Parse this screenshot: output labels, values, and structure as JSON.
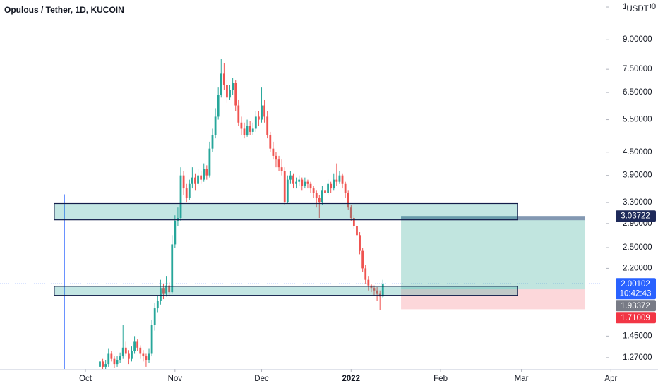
{
  "chart_data": {
    "type": "candlestick",
    "title": "Opulous / Tether, 1D, KUCOIN",
    "y_unit": "USDT",
    "log_y": true,
    "colors": {
      "up": "#26a69a",
      "down": "#ef5350"
    },
    "xlim": [
      -29.6,
      180.2
    ],
    "xticks": [
      {
        "value": 0,
        "label": "Oct"
      },
      {
        "value": 31,
        "label": "Nov"
      },
      {
        "value": 61,
        "label": "Dec"
      },
      {
        "value": 92,
        "label": "2022"
      },
      {
        "value": 123,
        "label": "Feb"
      },
      {
        "value": 151,
        "label": "Mar"
      },
      {
        "value": 182,
        "label": "Apr"
      }
    ],
    "ylim": [
      1.184,
      11.49
    ],
    "yticks": [
      {
        "value": 1.27,
        "label": "1.27000"
      },
      {
        "value": 1.45,
        "label": "1.45000"
      },
      {
        "value": 2.2,
        "label": "2.20000"
      },
      {
        "value": 2.5,
        "label": "2.50000"
      },
      {
        "value": 2.9,
        "label": "2.90000"
      },
      {
        "value": 3.3,
        "label": "3.30000"
      },
      {
        "value": 3.9,
        "label": "3.90000"
      },
      {
        "value": 4.5,
        "label": "4.50000"
      },
      {
        "value": 5.5,
        "label": "5.50000"
      },
      {
        "value": 6.5,
        "label": "6.50000"
      },
      {
        "value": 7.5,
        "label": "7.50000"
      },
      {
        "value": 9,
        "label": "9.00000"
      },
      {
        "value": 11,
        "label": "11.00000"
      }
    ],
    "x": [
      5,
      6,
      7,
      8,
      9,
      10,
      11,
      12,
      13,
      14,
      15,
      16,
      17,
      18,
      19,
      20,
      21,
      22,
      23,
      24,
      25,
      26,
      27,
      28,
      29,
      30,
      31,
      32,
      33,
      34,
      35,
      36,
      37,
      38,
      39,
      40,
      41,
      42,
      43,
      44,
      45,
      46,
      47,
      48,
      49,
      50,
      51,
      52,
      53,
      54,
      55,
      56,
      57,
      58,
      59,
      60,
      61,
      62,
      63,
      64,
      65,
      66,
      67,
      68,
      69,
      70,
      71,
      72,
      73,
      74,
      75,
      76,
      77,
      78,
      79,
      80,
      81,
      82,
      83,
      84,
      85,
      86,
      87,
      88,
      89,
      90,
      91,
      92,
      93,
      94,
      95,
      96,
      97,
      98,
      99,
      100,
      101,
      102,
      103
    ],
    "open": [
      1.2,
      1.24,
      1.2,
      1.22,
      1.3,
      1.26,
      1.22,
      1.25,
      1.28,
      1.35,
      1.3,
      1.26,
      1.32,
      1.4,
      1.35,
      1.3,
      1.28,
      1.25,
      1.3,
      1.55,
      1.72,
      1.8,
      1.95,
      1.88,
      1.98,
      1.9,
      2.55,
      2.95,
      3.0,
      3.9,
      3.6,
      3.4,
      3.7,
      3.85,
      3.7,
      3.9,
      3.8,
      4.05,
      3.9,
      4.6,
      5.0,
      5.6,
      6.4,
      7.3,
      6.8,
      6.3,
      6.6,
      6.9,
      6.0,
      5.4,
      5.2,
      5.0,
      5.3,
      5.1,
      5.2,
      5.6,
      5.5,
      6.0,
      5.6,
      5.0,
      4.6,
      4.4,
      4.3,
      4.1,
      4.0,
      3.3,
      3.8,
      3.9,
      3.7,
      3.75,
      3.8,
      3.65,
      3.75,
      3.7,
      3.6,
      3.5,
      3.4,
      3.3,
      3.55,
      3.5,
      3.7,
      3.6,
      3.8,
      3.75,
      3.9,
      3.7,
      3.5,
      3.2,
      3.0,
      2.85,
      2.7,
      2.45,
      2.2,
      2.05,
      1.98,
      1.95,
      1.92,
      1.88,
      1.85
    ],
    "high": [
      1.27,
      1.26,
      1.25,
      1.34,
      1.32,
      1.28,
      1.28,
      1.31,
      1.55,
      1.4,
      1.33,
      1.36,
      1.45,
      1.42,
      1.37,
      1.33,
      1.3,
      1.34,
      1.6,
      1.78,
      1.86,
      2.05,
      2.0,
      2.1,
      2.02,
      2.7,
      3.05,
      3.2,
      4.1,
      4.0,
      3.7,
      3.8,
      4.1,
      3.95,
      4.05,
      4.0,
      4.2,
      4.15,
      4.8,
      5.2,
      5.9,
      6.7,
      8.0,
      7.8,
      7.0,
      6.8,
      7.1,
      7.0,
      6.2,
      5.6,
      5.4,
      5.5,
      5.45,
      5.4,
      5.8,
      5.8,
      6.7,
      6.2,
      5.8,
      5.1,
      4.8,
      4.5,
      4.4,
      4.3,
      4.1,
      3.9,
      4.0,
      3.95,
      3.85,
      3.9,
      3.85,
      3.85,
      3.8,
      3.75,
      3.65,
      3.55,
      3.45,
      3.65,
      3.6,
      3.8,
      3.75,
      3.95,
      4.2,
      4.0,
      3.95,
      3.75,
      3.55,
      3.25,
      3.05,
      2.9,
      2.75,
      2.5,
      2.25,
      2.1,
      2.0,
      1.98,
      1.96,
      1.92,
      2.05
    ],
    "low": [
      1.18,
      1.17,
      1.18,
      1.2,
      1.24,
      1.19,
      1.2,
      1.23,
      1.26,
      1.28,
      1.22,
      1.24,
      1.3,
      1.32,
      1.26,
      1.24,
      1.2,
      1.23,
      1.28,
      1.5,
      1.68,
      1.76,
      1.82,
      1.85,
      1.85,
      1.88,
      2.5,
      2.85,
      2.95,
      3.45,
      3.3,
      3.35,
      3.6,
      3.55,
      3.65,
      3.7,
      3.75,
      3.8,
      3.85,
      4.5,
      4.9,
      5.5,
      6.3,
      6.6,
      6.1,
      6.2,
      6.4,
      5.8,
      5.3,
      5.0,
      4.9,
      4.95,
      5.0,
      5.0,
      5.1,
      5.3,
      5.4,
      5.4,
      4.9,
      4.5,
      4.3,
      4.1,
      4.0,
      3.9,
      3.25,
      3.28,
      3.7,
      3.6,
      3.6,
      3.65,
      3.55,
      3.6,
      3.6,
      3.5,
      3.4,
      3.2,
      3.0,
      3.25,
      3.4,
      3.45,
      3.5,
      3.55,
      3.65,
      3.7,
      3.6,
      3.4,
      3.15,
      2.95,
      2.8,
      2.6,
      2.4,
      2.15,
      2.0,
      1.92,
      1.9,
      1.86,
      1.8,
      1.7,
      1.83
    ],
    "close": [
      1.24,
      1.2,
      1.22,
      1.3,
      1.26,
      1.22,
      1.25,
      1.28,
      1.35,
      1.3,
      1.26,
      1.32,
      1.4,
      1.35,
      1.3,
      1.28,
      1.25,
      1.3,
      1.55,
      1.72,
      1.8,
      1.95,
      1.88,
      1.98,
      1.9,
      2.55,
      2.95,
      3.0,
      3.9,
      3.6,
      3.4,
      3.7,
      3.85,
      3.7,
      3.9,
      3.8,
      4.05,
      3.9,
      4.6,
      5.0,
      5.6,
      6.4,
      7.3,
      6.8,
      6.3,
      6.6,
      6.9,
      6.0,
      5.4,
      5.2,
      5.0,
      5.3,
      5.1,
      5.2,
      5.6,
      5.5,
      6.0,
      5.6,
      5.0,
      4.6,
      4.4,
      4.3,
      4.1,
      4.0,
      3.3,
      3.8,
      3.9,
      3.7,
      3.75,
      3.8,
      3.65,
      3.75,
      3.7,
      3.6,
      3.5,
      3.4,
      3.3,
      3.55,
      3.5,
      3.7,
      3.6,
      3.8,
      3.75,
      3.9,
      3.7,
      3.5,
      3.2,
      3.0,
      2.85,
      2.7,
      2.45,
      2.2,
      2.05,
      1.98,
      1.95,
      1.92,
      1.88,
      1.85,
      2.00102
    ],
    "zones": [
      {
        "low": 2.966,
        "high": 3.28,
        "x_start": -10.8,
        "x_end": 149.6
      },
      {
        "low": 1.863,
        "high": 1.97,
        "x_start": -10.8,
        "x_end": 149.6
      }
    ],
    "vline": {
      "x": -7.3,
      "top": 3.47
    },
    "position": {
      "target": 3.03722,
      "entry": 1.93372,
      "stop": 1.71009,
      "x_start": 109.3,
      "x_end": 172.9
    },
    "last_price": 2.00102,
    "countdown": "10:42:43"
  }
}
